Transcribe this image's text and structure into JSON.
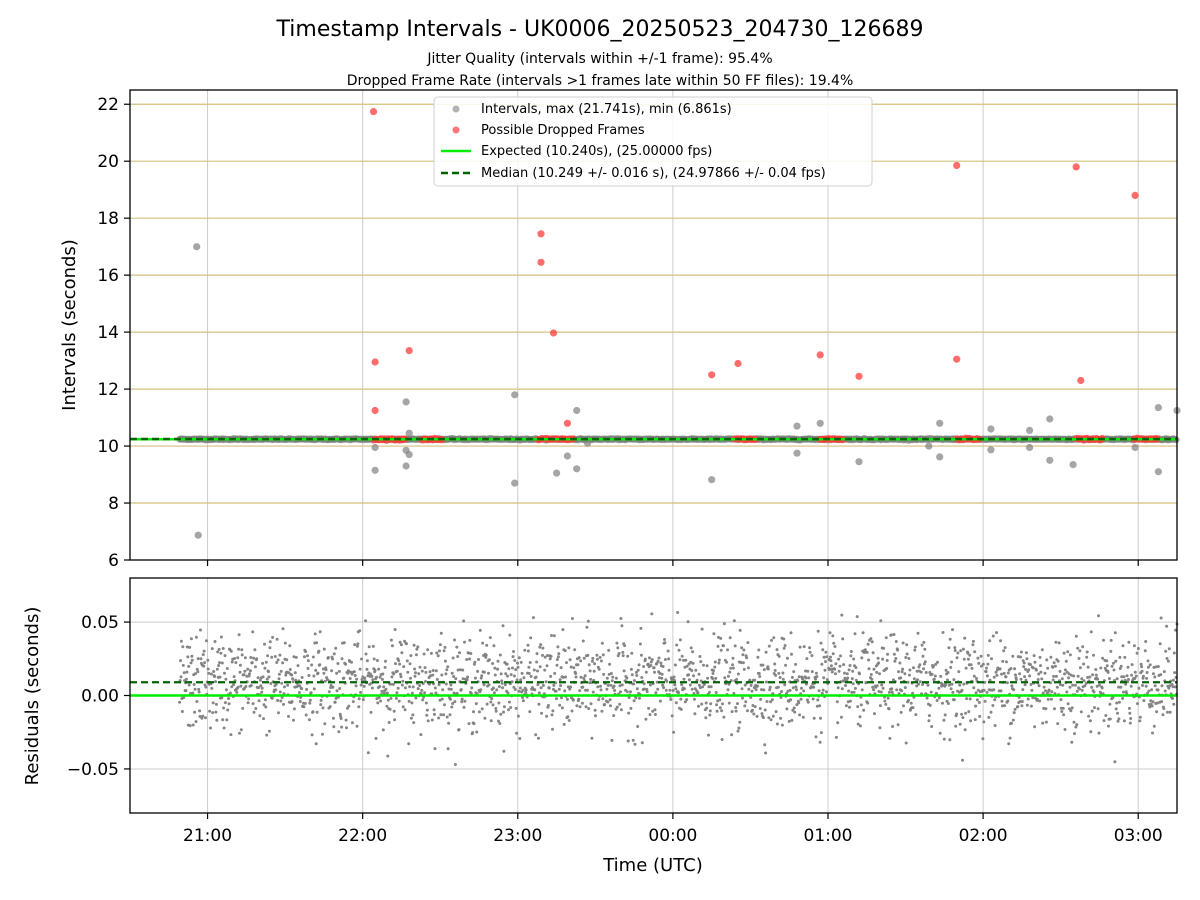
{
  "chart_data": {
    "type": "scatter",
    "title": "Timestamp Intervals - UK0006_20250523_204730_126689",
    "subtitle_lines": [
      "Jitter Quality (intervals within +/-1 frame): 95.4%",
      "Dropped Frame Rate (intervals >1 frames late within 50 FF files): 19.4%"
    ],
    "xlabel": "Time (UTC)",
    "x_tick_labels": [
      "21:00",
      "22:00",
      "23:00",
      "00:00",
      "01:00",
      "02:00",
      "03:00"
    ],
    "x_tick_hours": [
      21,
      22,
      23,
      24,
      25,
      26,
      27
    ],
    "x_range_hours": [
      20.5,
      27.25
    ],
    "colors": {
      "intervals": "#808080",
      "dropped": "#ff3b3b",
      "expected": "#00ee00",
      "median": "#006400",
      "grid_top": "#d4bf7e",
      "grid": "#cccccc"
    },
    "upper": {
      "ylabel": "Intervals (seconds)",
      "ylim": [
        6,
        22.5
      ],
      "y_ticks": [
        6,
        8,
        10,
        12,
        14,
        16,
        18,
        20,
        22
      ],
      "legend": {
        "placement": "top-center",
        "entries": [
          "Intervals, max (21.741s), min (6.861s)",
          "Possible Dropped Frames",
          "Expected (10.240s), (25.00000 fps)",
          "Median (10.249 +/- 0.016 s), (24.97866 +/- 0.04 fps)"
        ]
      },
      "expected_value": 10.24,
      "median_value": 10.249,
      "baseline_span_hours": [
        20.82,
        27.25
      ],
      "dropped_runs_hours": [
        [
          22.07,
          22.28
        ],
        [
          22.38,
          22.52
        ],
        [
          23.13,
          23.37
        ],
        [
          24.4,
          24.54
        ],
        [
          24.95,
          25.1
        ],
        [
          25.83,
          25.98
        ],
        [
          26.6,
          26.78
        ],
        [
          26.97,
          27.13
        ]
      ],
      "interval_outliers": [
        [
          20.93,
          17.0
        ],
        [
          20.94,
          6.87
        ],
        [
          22.08,
          9.15
        ],
        [
          22.08,
          9.95
        ],
        [
          22.28,
          11.55
        ],
        [
          22.28,
          9.85
        ],
        [
          22.28,
          9.3
        ],
        [
          22.3,
          9.7
        ],
        [
          22.3,
          10.45
        ],
        [
          22.98,
          8.7
        ],
        [
          22.98,
          11.8
        ],
        [
          23.25,
          9.05
        ],
        [
          23.32,
          9.65
        ],
        [
          23.38,
          11.25
        ],
        [
          23.38,
          9.2
        ],
        [
          23.45,
          10.1
        ],
        [
          24.25,
          8.82
        ],
        [
          24.8,
          10.7
        ],
        [
          24.8,
          9.75
        ],
        [
          24.95,
          10.8
        ],
        [
          25.2,
          9.45
        ],
        [
          25.65,
          10.0
        ],
        [
          25.72,
          10.8
        ],
        [
          25.72,
          9.62
        ],
        [
          26.05,
          10.6
        ],
        [
          26.05,
          9.87
        ],
        [
          26.3,
          10.55
        ],
        [
          26.3,
          9.95
        ],
        [
          26.43,
          10.95
        ],
        [
          26.43,
          9.5
        ],
        [
          26.58,
          9.35
        ],
        [
          26.98,
          9.95
        ],
        [
          27.13,
          11.35
        ],
        [
          27.13,
          9.1
        ],
        [
          27.25,
          11.25
        ]
      ],
      "dropped_points": [
        [
          22.07,
          21.74
        ],
        [
          22.08,
          12.95
        ],
        [
          22.08,
          11.25
        ],
        [
          22.3,
          13.35
        ],
        [
          23.15,
          17.45
        ],
        [
          23.15,
          16.45
        ],
        [
          23.23,
          13.97
        ],
        [
          23.32,
          10.8
        ],
        [
          24.25,
          12.5
        ],
        [
          24.42,
          12.9
        ],
        [
          24.95,
          13.2
        ],
        [
          25.2,
          12.45
        ],
        [
          25.83,
          19.85
        ],
        [
          25.83,
          13.05
        ],
        [
          26.6,
          19.8
        ],
        [
          26.63,
          12.3
        ],
        [
          26.98,
          18.8
        ]
      ]
    },
    "lower": {
      "ylabel": "Residuals (seconds)",
      "ylim": [
        -0.08,
        0.08
      ],
      "y_ticks": [
        -0.05,
        0.0,
        0.05
      ],
      "y_tick_labels": [
        "−0.05",
        "0.00",
        "0.05"
      ],
      "expected_residual": 0.0,
      "median_residual": 0.009,
      "residual_span_hours": [
        20.82,
        27.25
      ],
      "residual_count": 2200,
      "residual_range": [
        -0.047,
        0.059
      ]
    }
  }
}
